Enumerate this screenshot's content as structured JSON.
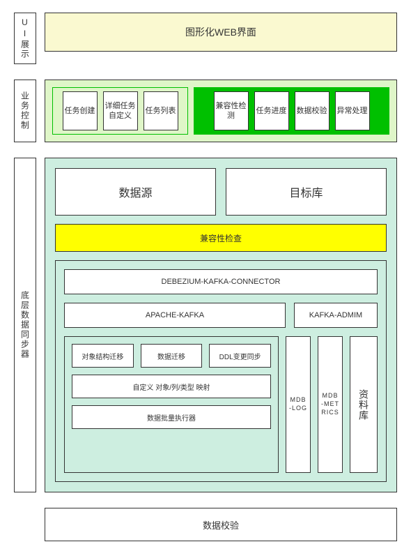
{
  "colors": {
    "border": "#333333",
    "bg_page": "#ffffff",
    "bg_ui": "#faf9d0",
    "bg_biz": "#dff6c8",
    "bg_biz_right": "#00c000",
    "bg_sync": "#cdeee0",
    "bg_compat": "#ffff00",
    "bg_white": "#ffffff"
  },
  "layer1": {
    "sidebar": "UI展示",
    "body": "图形化WEB界面"
  },
  "layer2": {
    "sidebar": "业务控制",
    "left": [
      "任务创建",
      "详细任务自定义",
      "任务列表"
    ],
    "right": [
      "兼容性检测",
      "任务进度",
      "数据校验",
      "异常处理"
    ]
  },
  "layer3": {
    "sidebar": "底层数据同步器",
    "source": "数据源",
    "target": "目标库",
    "compat": "兼容性检查",
    "connector": "DEBEZIUM-KAFKA-CONNECTOR",
    "kafka": "APACHE-KAFKA",
    "kafka_admin": "KAFKA-ADMIM",
    "nested_top": [
      "对象结构迁移",
      "数据迁移",
      "DDL变更同步"
    ],
    "nested_mid": "自定义 对象/列/类型 映射",
    "nested_bot": "数据批量执行器",
    "tall1": "MDB-LOG",
    "tall2": "MDB-METRICS",
    "tall3": "资料库"
  },
  "layer4": {
    "body": "数据校验"
  }
}
